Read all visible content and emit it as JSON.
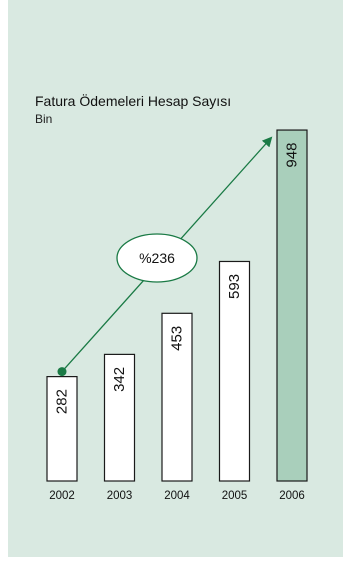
{
  "chart_data": {
    "type": "bar",
    "title": "Fatura Ödemeleri Hesap Sayısı",
    "subtitle": "Bin",
    "categories": [
      "2002",
      "2003",
      "2004",
      "2005",
      "2006"
    ],
    "values": [
      282,
      342,
      453,
      593,
      948
    ],
    "value_labels": [
      "282",
      "342",
      "453",
      "593",
      "948"
    ],
    "highlight_index": 4,
    "annotation": "%236",
    "ylim": [
      0,
      1000
    ],
    "grid": false,
    "colors": {
      "panel_bg": "#d9e9e1",
      "bar_fill": "#ffffff",
      "bar_highlight": "#a9cfbb",
      "bar_stroke": "#1a1a1a",
      "arrow": "#1a7a45"
    }
  }
}
